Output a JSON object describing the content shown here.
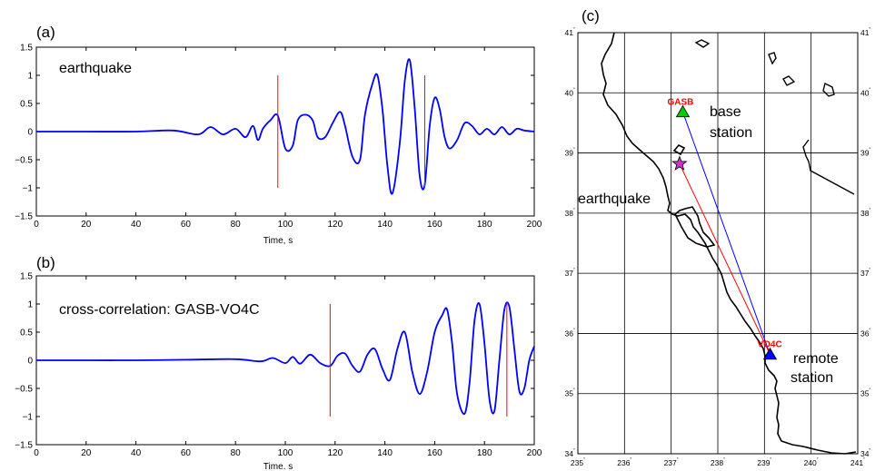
{
  "chart_data": [
    {
      "id": "a",
      "type": "line",
      "panel_label": "(a)",
      "annotation": "earthquake",
      "xlabel": "Time, s",
      "ylabel": "",
      "xlim": [
        0,
        200
      ],
      "ylim": [
        -1.5,
        1.5
      ],
      "xticks": [
        "0",
        "20",
        "40",
        "60",
        "80",
        "100",
        "120",
        "140",
        "160",
        "180",
        "200"
      ],
      "yticks": [
        "1.5",
        "1",
        "0.5",
        "0",
        "−0.5",
        "−1",
        "−1.5"
      ],
      "series": [
        {
          "color": "#0000ff",
          "x": [
            0,
            20,
            40,
            55,
            65,
            70,
            75,
            80,
            84,
            87,
            89,
            91,
            94,
            97,
            100,
            103,
            105,
            108,
            111,
            113,
            116,
            119,
            122,
            124,
            127,
            130,
            132,
            135,
            137,
            139,
            141,
            143,
            146,
            148,
            150,
            152,
            154,
            156,
            158,
            160,
            162,
            164,
            166,
            169,
            172,
            175,
            178,
            181,
            184,
            187,
            190,
            193,
            196,
            200
          ],
          "y": [
            0,
            0,
            0,
            0.02,
            -0.05,
            0.08,
            -0.05,
            0.05,
            -0.1,
            0.1,
            -0.15,
            0.05,
            0.2,
            0.28,
            -0.3,
            -0.25,
            0.2,
            0.3,
            0.2,
            -0.1,
            -0.1,
            0.15,
            0.35,
            0.1,
            -0.45,
            -0.5,
            0.3,
            0.85,
            1.0,
            0.4,
            -0.6,
            -1.1,
            -0.2,
            0.9,
            1.27,
            0.4,
            -0.8,
            -0.95,
            0.1,
            0.6,
            0.4,
            -0.1,
            -0.3,
            -0.15,
            0.15,
            0.1,
            -0.05,
            0.05,
            -0.05,
            0.08,
            -0.05,
            0.05,
            0.02,
            0.0
          ]
        }
      ],
      "vlines": [
        97,
        156
      ]
    },
    {
      "id": "b",
      "type": "line",
      "panel_label": "(b)",
      "annotation": "cross-correlation: GASB-VO4C",
      "xlabel": "Time. s",
      "ylabel": "",
      "xlim": [
        0,
        200
      ],
      "ylim": [
        -1.5,
        1.5
      ],
      "xticks": [
        "0",
        "20",
        "40",
        "60",
        "80",
        "100",
        "120",
        "140",
        "160",
        "180",
        "200"
      ],
      "yticks": [
        "1.5",
        "1",
        "0.5",
        "0",
        "−0.5",
        "−1",
        "−1.5"
      ],
      "series": [
        {
          "color": "#0000ff",
          "x": [
            0,
            20,
            40,
            60,
            80,
            90,
            95,
            100,
            103,
            106,
            110,
            114,
            118,
            121,
            124,
            127,
            130,
            133,
            136,
            139,
            142,
            145,
            148,
            151,
            154,
            157,
            160,
            163,
            165,
            167,
            169,
            172,
            174,
            176,
            178,
            180,
            182,
            184,
            186,
            188,
            190,
            192,
            194,
            196,
            198,
            200
          ],
          "y": [
            0,
            0,
            0,
            0.01,
            0.02,
            -0.02,
            0.04,
            -0.05,
            0.06,
            -0.06,
            0.1,
            -0.05,
            -0.1,
            0.08,
            0.12,
            -0.1,
            -0.2,
            0.1,
            0.2,
            -0.15,
            -0.35,
            0.2,
            0.5,
            -0.2,
            -0.6,
            -0.2,
            0.5,
            0.8,
            0.9,
            0.3,
            -0.6,
            -0.95,
            -0.4,
            0.7,
            1.0,
            0.3,
            -0.7,
            -0.9,
            0.0,
            0.9,
            0.95,
            0.2,
            -0.55,
            -0.5,
            0.0,
            0.25
          ]
        }
      ],
      "vlines": [
        118,
        189
      ]
    },
    {
      "id": "c",
      "type": "scatter",
      "panel_label": "(c)",
      "xlim": [
        235,
        241
      ],
      "ylim": [
        34,
        41
      ],
      "xticks": [
        "235",
        "236",
        "237",
        "238",
        "239",
        "240",
        "241"
      ],
      "yticks": [
        "41",
        "40",
        "39",
        "38",
        "37",
        "36",
        "35",
        "34"
      ],
      "tick_degree_mark": "˚",
      "grid": true,
      "points": [
        {
          "name": "GASB",
          "label": "GASB",
          "marker": "triangle",
          "color": "#00cc00",
          "lon": 237.25,
          "lat": 39.68,
          "caption": [
            "base",
            "station"
          ]
        },
        {
          "name": "VO4C",
          "label": "VO4C",
          "marker": "triangle",
          "color": "#0000ff",
          "lon": 239.12,
          "lat": 35.65,
          "caption": [
            "remote",
            "station"
          ]
        },
        {
          "name": "earthquake",
          "label": "earthquake",
          "marker": "star",
          "color": "#cc33cc",
          "lon": 237.18,
          "lat": 38.82,
          "caption": []
        }
      ],
      "paths": [
        {
          "from": "GASB",
          "to": "VO4C",
          "color": "#0000ff"
        },
        {
          "from": "earthquake",
          "to": "VO4C",
          "color": "#ff0000"
        }
      ]
    }
  ]
}
